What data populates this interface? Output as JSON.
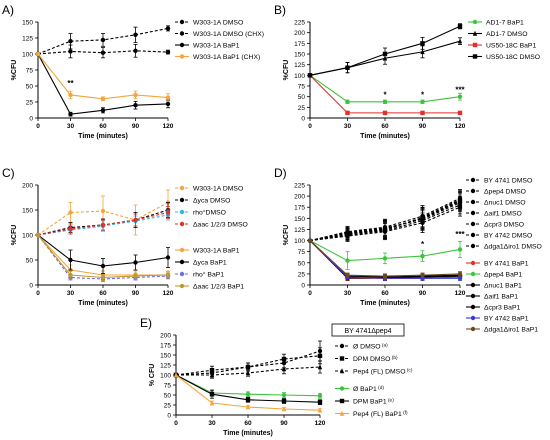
{
  "chart_data": [
    {
      "panel": "A)",
      "type": "line",
      "ylabel": "%CFU",
      "xlabel": "Time (minutes)",
      "x": [
        0,
        30,
        60,
        90,
        120
      ],
      "xlim": [
        0,
        120
      ],
      "ylim": [
        0,
        150
      ],
      "yticks": [
        0,
        25,
        50,
        75,
        100,
        125,
        150
      ],
      "annotations": [
        {
          "x": 30,
          "y": 50,
          "text": "**"
        }
      ],
      "series": [
        {
          "name": "W303-1A DMSO",
          "values": [
            100,
            120,
            122,
            130,
            140
          ],
          "err": [
            0,
            12,
            10,
            12,
            4
          ],
          "color": "#000000",
          "dashed": true,
          "marker": "circle"
        },
        {
          "name": "W303-1A DMSO (CHX)",
          "values": [
            100,
            104,
            102,
            105,
            103
          ],
          "err": [
            0,
            10,
            8,
            10,
            3
          ],
          "color": "#000000",
          "dashed": true,
          "marker": "circle"
        },
        {
          "name": "W303-1A BaP1",
          "values": [
            100,
            6,
            12,
            20,
            22
          ],
          "err": [
            0,
            3,
            4,
            6,
            6
          ],
          "color": "#000000",
          "dashed": false,
          "marker": "circle"
        },
        {
          "name": "W303-1A BaP1 (CHX)",
          "values": [
            100,
            36,
            30,
            36,
            32
          ],
          "err": [
            0,
            6,
            3,
            6,
            6
          ],
          "color": "#f5a33a",
          "dashed": false,
          "marker": "circle"
        }
      ]
    },
    {
      "panel": "B)",
      "type": "line",
      "ylabel": "%CFU",
      "xlabel": "Time (minutes)",
      "x": [
        0,
        30,
        60,
        90,
        120
      ],
      "xlim": [
        0,
        120
      ],
      "ylim": [
        0,
        225
      ],
      "yticks": [
        0,
        25,
        50,
        75,
        100,
        125,
        150,
        175,
        200,
        225
      ],
      "annotations": [
        {
          "x": 60,
          "y": 48,
          "text": "*"
        },
        {
          "x": 90,
          "y": 48,
          "text": "*"
        },
        {
          "x": 120,
          "y": 60,
          "text": "***"
        }
      ],
      "series": [
        {
          "name": "AD1-7 BaP1",
          "values": [
            100,
            38,
            38,
            38,
            50
          ],
          "err": [
            0,
            4,
            4,
            4,
            8
          ],
          "color": "#3cc43c",
          "dashed": false,
          "marker": "circle"
        },
        {
          "name": "AD1-7 DMSO",
          "values": [
            100,
            118,
            140,
            155,
            180
          ],
          "err": [
            0,
            12,
            14,
            14,
            8
          ],
          "color": "#000000",
          "dashed": false,
          "marker": "triangle"
        },
        {
          "name": "US50-18C BaP1",
          "values": [
            100,
            12,
            12,
            12,
            12
          ],
          "err": [
            0,
            2,
            2,
            2,
            2
          ],
          "color": "#e0312b",
          "dashed": false,
          "marker": "square"
        },
        {
          "name": "US50-18C DMSO",
          "values": [
            100,
            118,
            150,
            175,
            215
          ],
          "err": [
            0,
            12,
            14,
            14,
            6
          ],
          "color": "#000000",
          "dashed": false,
          "marker": "square"
        }
      ]
    },
    {
      "panel": "C)",
      "type": "line",
      "ylabel": "%CFU",
      "xlabel": "Time (minutes)",
      "x": [
        0,
        30,
        60,
        90,
        120
      ],
      "xlim": [
        0,
        120
      ],
      "ylim": [
        0,
        200
      ],
      "yticks": [
        0,
        50,
        100,
        150,
        200
      ],
      "series": [
        {
          "name": "W303-1A DMSO",
          "values": [
            100,
            145,
            148,
            130,
            165
          ],
          "err": [
            0,
            20,
            30,
            30,
            25
          ],
          "color": "#f5a33a",
          "dashed": true,
          "marker": "circle"
        },
        {
          "name": "Δyca DMSO",
          "values": [
            100,
            115,
            120,
            130,
            150
          ],
          "err": [
            0,
            10,
            12,
            15,
            15
          ],
          "color": "#000000",
          "dashed": true,
          "marker": "circle"
        },
        {
          "name": "rho°DMSO",
          "values": [
            100,
            110,
            118,
            128,
            140
          ],
          "err": [
            0,
            8,
            10,
            10,
            10
          ],
          "color": "#2fb6e8",
          "dashed": true,
          "marker": "circle"
        },
        {
          "name": "Δaac 1/2/3 DMSO",
          "values": [
            100,
            112,
            120,
            130,
            145
          ],
          "err": [
            0,
            10,
            10,
            12,
            12
          ],
          "color": "#e0312b",
          "dashed": true,
          "marker": "circle"
        },
        {
          "name": "W303-1A BaP1",
          "values": [
            100,
            30,
            20,
            20,
            20
          ],
          "err": [
            0,
            10,
            8,
            8,
            8
          ],
          "color": "#f5a33a",
          "dashed": false,
          "marker": "circle"
        },
        {
          "name": "Δyca BaP1",
          "values": [
            100,
            50,
            38,
            45,
            55
          ],
          "err": [
            0,
            20,
            15,
            15,
            20
          ],
          "color": "#000000",
          "dashed": false,
          "marker": "circle"
        },
        {
          "name": "rho° BaP1",
          "values": [
            100,
            15,
            12,
            15,
            18
          ],
          "err": [
            0,
            5,
            5,
            5,
            5
          ],
          "color": "#6b6bf5",
          "dashed": true,
          "marker": "circle"
        },
        {
          "name": "Δaac 1/2/3 BaP1",
          "values": [
            100,
            20,
            15,
            18,
            20
          ],
          "err": [
            0,
            8,
            6,
            6,
            6
          ],
          "color": "#c09a2c",
          "dashed": false,
          "marker": "circle"
        }
      ]
    },
    {
      "panel": "D)",
      "type": "line",
      "ylabel": "%CFU",
      "xlabel": "Time (minutes)",
      "x": [
        0,
        30,
        60,
        90,
        120
      ],
      "xlim": [
        0,
        120
      ],
      "ylim": [
        0,
        225
      ],
      "yticks": [
        0,
        25,
        50,
        75,
        100,
        125,
        150,
        175,
        200,
        225
      ],
      "annotations": [
        {
          "x": 90,
          "y": 85,
          "text": "*"
        },
        {
          "x": 120,
          "y": 108,
          "text": "***"
        }
      ],
      "series": [
        {
          "name": "BY 4741 DMSO",
          "values": [
            100,
            115,
            125,
            150,
            190
          ],
          "err": [
            0,
            12,
            20,
            25,
            20
          ],
          "color": "#000000",
          "dashed": true,
          "marker": "circle"
        },
        {
          "name": "Δpep4 DMSO",
          "values": [
            100,
            118,
            128,
            148,
            185
          ],
          "err": [
            0,
            12,
            18,
            22,
            20
          ],
          "color": "#000000",
          "dashed": true,
          "marker": "circle"
        },
        {
          "name": "Δnuc1 DMSO",
          "values": [
            100,
            120,
            130,
            155,
            195
          ],
          "err": [
            0,
            12,
            18,
            24,
            20
          ],
          "color": "#000000",
          "dashed": true,
          "marker": "circle"
        },
        {
          "name": "Δaif1 DMSO",
          "values": [
            100,
            112,
            122,
            145,
            180
          ],
          "err": [
            0,
            12,
            18,
            22,
            20
          ],
          "color": "#000000",
          "dashed": true,
          "marker": "circle"
        },
        {
          "name": "Δcpr3 DMSO",
          "values": [
            100,
            116,
            126,
            150,
            188
          ],
          "err": [
            0,
            12,
            18,
            22,
            20
          ],
          "color": "#000000",
          "dashed": true,
          "marker": "circle"
        },
        {
          "name": "BY 4742 DMSO",
          "values": [
            100,
            114,
            124,
            152,
            192
          ],
          "err": [
            0,
            12,
            18,
            22,
            20
          ],
          "color": "#000000",
          "dashed": true,
          "marker": "circle"
        },
        {
          "name": "Δdga1Δiro1 DMSO",
          "values": [
            100,
            110,
            120,
            140,
            175
          ],
          "err": [
            0,
            12,
            18,
            22,
            20
          ],
          "color": "#000000",
          "dashed": true,
          "marker": "circle"
        },
        {
          "name": "BY 4741 BaP1",
          "values": [
            100,
            15,
            15,
            15,
            18
          ],
          "err": [
            0,
            5,
            5,
            5,
            5
          ],
          "color": "#e0312b",
          "dashed": false,
          "marker": "circle"
        },
        {
          "name": "Δpep4 BaP1",
          "values": [
            100,
            55,
            60,
            65,
            80
          ],
          "err": [
            0,
            20,
            12,
            12,
            18
          ],
          "color": "#3cc43c",
          "dashed": false,
          "marker": "circle"
        },
        {
          "name": "Δnuc1 BaP1",
          "values": [
            100,
            18,
            18,
            20,
            22
          ],
          "err": [
            0,
            5,
            5,
            5,
            5
          ],
          "color": "#000000",
          "dashed": false,
          "marker": "circle"
        },
        {
          "name": "Δaif1 BaP1",
          "values": [
            100,
            20,
            18,
            18,
            20
          ],
          "err": [
            0,
            5,
            5,
            5,
            5
          ],
          "color": "#000000",
          "dashed": false,
          "marker": "circle"
        },
        {
          "name": "Δcpr3 BaP1",
          "values": [
            100,
            16,
            16,
            18,
            20
          ],
          "err": [
            0,
            5,
            5,
            5,
            5
          ],
          "color": "#000000",
          "dashed": false,
          "marker": "circle"
        },
        {
          "name": "BY 4742 BaP1",
          "values": [
            100,
            18,
            15,
            15,
            15
          ],
          "err": [
            0,
            5,
            5,
            5,
            5
          ],
          "color": "#3a3ad8",
          "dashed": false,
          "marker": "circle"
        },
        {
          "name": "Δdga1Δiro1 BaP1",
          "values": [
            100,
            22,
            20,
            22,
            25
          ],
          "err": [
            0,
            5,
            5,
            5,
            5
          ],
          "color": "#6b4a1e",
          "dashed": false,
          "marker": "circle"
        }
      ]
    },
    {
      "panel": "E)",
      "type": "line",
      "ylabel": "% CFU",
      "xlabel": "Time (minutes)",
      "x": [
        0,
        30,
        60,
        90,
        120
      ],
      "xlim": [
        0,
        120
      ],
      "ylim": [
        0,
        200
      ],
      "yticks": [
        0,
        25,
        50,
        75,
        100,
        125,
        150,
        175,
        200
      ],
      "legend_title": "BY 4741Δpep4",
      "series": [
        {
          "name": "Ø DMSO",
          "sup": "(a)",
          "values": [
            100,
            105,
            120,
            130,
            160
          ],
          "err": [
            0,
            10,
            10,
            12,
            25
          ],
          "color": "#000000",
          "dashed": true,
          "marker": "circle"
        },
        {
          "name": "DPM DMSO",
          "sup": "(b)",
          "values": [
            100,
            112,
            120,
            140,
            148
          ],
          "err": [
            0,
            10,
            10,
            12,
            20
          ],
          "color": "#000000",
          "dashed": true,
          "marker": "square"
        },
        {
          "name": "Pep4 (FL) DMSO",
          "sup": "(c)",
          "values": [
            100,
            100,
            105,
            115,
            120
          ],
          "err": [
            0,
            8,
            8,
            12,
            15
          ],
          "color": "#000000",
          "dashed": true,
          "marker": "triangle"
        },
        {
          "name": "Ø BaP1",
          "sup": "(d)",
          "values": [
            100,
            55,
            52,
            50,
            48
          ],
          "err": [
            0,
            8,
            6,
            6,
            6
          ],
          "color": "#3cc43c",
          "dashed": false,
          "marker": "circle"
        },
        {
          "name": "DPM BaP1",
          "sup": "(e)",
          "values": [
            100,
            52,
            38,
            35,
            32
          ],
          "err": [
            0,
            10,
            6,
            6,
            6
          ],
          "color": "#000000",
          "dashed": false,
          "marker": "square"
        },
        {
          "name": "Pep4 (FL) BaP1",
          "sup": "(f)",
          "values": [
            100,
            30,
            20,
            15,
            12
          ],
          "err": [
            0,
            5,
            4,
            4,
            4
          ],
          "color": "#f5a33a",
          "dashed": false,
          "marker": "triangle"
        }
      ]
    }
  ]
}
